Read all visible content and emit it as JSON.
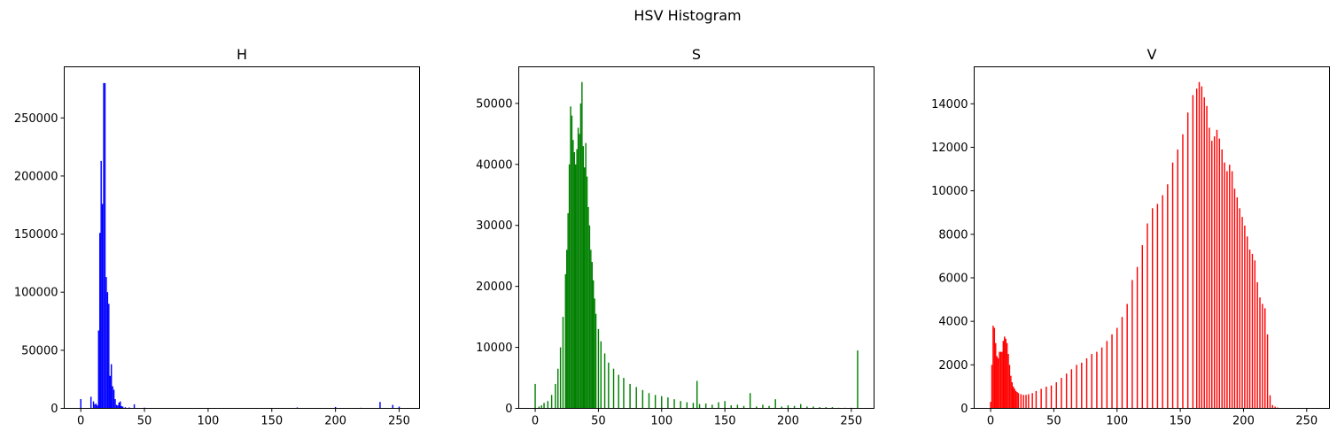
{
  "figure": {
    "title": "HSV Histogram"
  },
  "chart_data": [
    {
      "type": "bar",
      "title": "H",
      "color": "#0000ff",
      "xlim": [
        -13,
        266
      ],
      "ylim": [
        0,
        294000
      ],
      "xticks": [
        0,
        50,
        100,
        150,
        200,
        250
      ],
      "yticks": [
        0,
        50000,
        100000,
        150000,
        200000,
        250000
      ],
      "x": [
        0,
        8,
        10,
        11,
        12,
        13,
        14,
        15,
        16,
        17,
        18,
        19,
        20,
        21,
        22,
        23,
        24,
        25,
        26,
        27,
        28,
        29,
        30,
        31,
        32,
        33,
        35,
        38,
        42,
        50,
        60,
        80,
        100,
        120,
        150,
        170,
        200,
        220,
        235,
        245,
        250
      ],
      "values": [
        8000,
        10000,
        6000,
        3500,
        4000,
        2500,
        67000,
        151000,
        213000,
        176000,
        280000,
        280000,
        113000,
        100000,
        90000,
        28000,
        38000,
        19000,
        16000,
        8000,
        3000,
        2500,
        5000,
        6000,
        2000,
        1500,
        1000,
        800,
        3500,
        600,
        400,
        300,
        300,
        300,
        400,
        800,
        1200,
        500,
        5500,
        3000,
        1500
      ]
    },
    {
      "type": "bar",
      "title": "S",
      "color": "#008000",
      "xlim": [
        -13,
        268
      ],
      "ylim": [
        0,
        56000
      ],
      "xticks": [
        0,
        50,
        100,
        150,
        200,
        250
      ],
      "yticks": [
        0,
        10000,
        20000,
        30000,
        40000,
        50000
      ],
      "x": [
        0,
        3,
        5,
        7,
        10,
        13,
        16,
        18,
        20,
        22,
        24,
        25,
        26,
        27,
        28,
        29,
        30,
        31,
        32,
        33,
        34,
        35,
        36,
        37,
        38,
        39,
        40,
        41,
        42,
        43,
        44,
        45,
        46,
        47,
        48,
        50,
        52,
        55,
        58,
        62,
        66,
        70,
        75,
        80,
        85,
        90,
        95,
        100,
        105,
        110,
        115,
        120,
        125,
        128,
        130,
        135,
        140,
        145,
        150,
        155,
        160,
        165,
        170,
        175,
        180,
        185,
        190,
        195,
        200,
        205,
        210,
        215,
        220,
        225,
        230,
        235,
        240,
        245,
        250,
        255
      ],
      "values": [
        4000,
        300,
        500,
        900,
        1200,
        2200,
        4000,
        6500,
        10000,
        15000,
        22000,
        26000,
        32000,
        40000,
        49500,
        48000,
        44000,
        42000,
        40000,
        42500,
        46000,
        45000,
        50000,
        53500,
        43000,
        39500,
        43500,
        38000,
        33000,
        30000,
        26000,
        24000,
        21000,
        18000,
        15500,
        13000,
        11000,
        9000,
        7500,
        6500,
        5500,
        5000,
        4000,
        3500,
        3000,
        2500,
        2200,
        2000,
        1800,
        1500,
        1200,
        1000,
        900,
        4500,
        700,
        800,
        600,
        1000,
        1200,
        500,
        600,
        400,
        2500,
        300,
        600,
        400,
        1500,
        300,
        500,
        400,
        700,
        300,
        300,
        200,
        200,
        200,
        100,
        100,
        100,
        9500
      ]
    },
    {
      "type": "bar",
      "title": "V",
      "color": "#ff0000",
      "xlim": [
        -13,
        268
      ],
      "ylim": [
        0,
        15700
      ],
      "xticks": [
        0,
        50,
        100,
        150,
        200,
        250
      ],
      "yticks": [
        0,
        2000,
        4000,
        6000,
        8000,
        10000,
        12000,
        14000
      ],
      "x": [
        0,
        1,
        2,
        3,
        4,
        5,
        6,
        7,
        8,
        9,
        10,
        11,
        12,
        13,
        14,
        15,
        16,
        17,
        18,
        19,
        20,
        21,
        22,
        24,
        26,
        28,
        30,
        33,
        36,
        40,
        44,
        48,
        52,
        56,
        60,
        64,
        68,
        72,
        76,
        80,
        84,
        88,
        92,
        96,
        100,
        104,
        108,
        112,
        116,
        120,
        124,
        128,
        132,
        136,
        140,
        144,
        148,
        152,
        156,
        160,
        163,
        165,
        167,
        169,
        171,
        173,
        175,
        177,
        179,
        181,
        183,
        185,
        187,
        189,
        191,
        193,
        195,
        197,
        199,
        201,
        203,
        205,
        207,
        209,
        211,
        213,
        215,
        217,
        219,
        221,
        223,
        225,
        227,
        230,
        235
      ],
      "values": [
        300,
        2000,
        3800,
        3700,
        3000,
        2400,
        2300,
        2600,
        2600,
        2600,
        3100,
        3300,
        3200,
        3000,
        2500,
        2000,
        1500,
        1200,
        1000,
        900,
        800,
        750,
        700,
        650,
        620,
        620,
        650,
        700,
        800,
        900,
        1000,
        1050,
        1200,
        1400,
        1600,
        1800,
        2000,
        2100,
        2300,
        2500,
        2600,
        2800,
        3100,
        3400,
        3700,
        4200,
        4800,
        5900,
        6500,
        7500,
        8500,
        9200,
        9400,
        9800,
        10300,
        11300,
        11900,
        12600,
        13600,
        14400,
        14700,
        15000,
        14800,
        14300,
        13900,
        12900,
        12300,
        12500,
        12800,
        12400,
        11900,
        11300,
        10900,
        11200,
        10900,
        10100,
        9700,
        9200,
        8800,
        8400,
        7900,
        7300,
        7100,
        6800,
        5800,
        5100,
        4800,
        4600,
        3400,
        600,
        150,
        80,
        40,
        20,
        10
      ]
    }
  ]
}
